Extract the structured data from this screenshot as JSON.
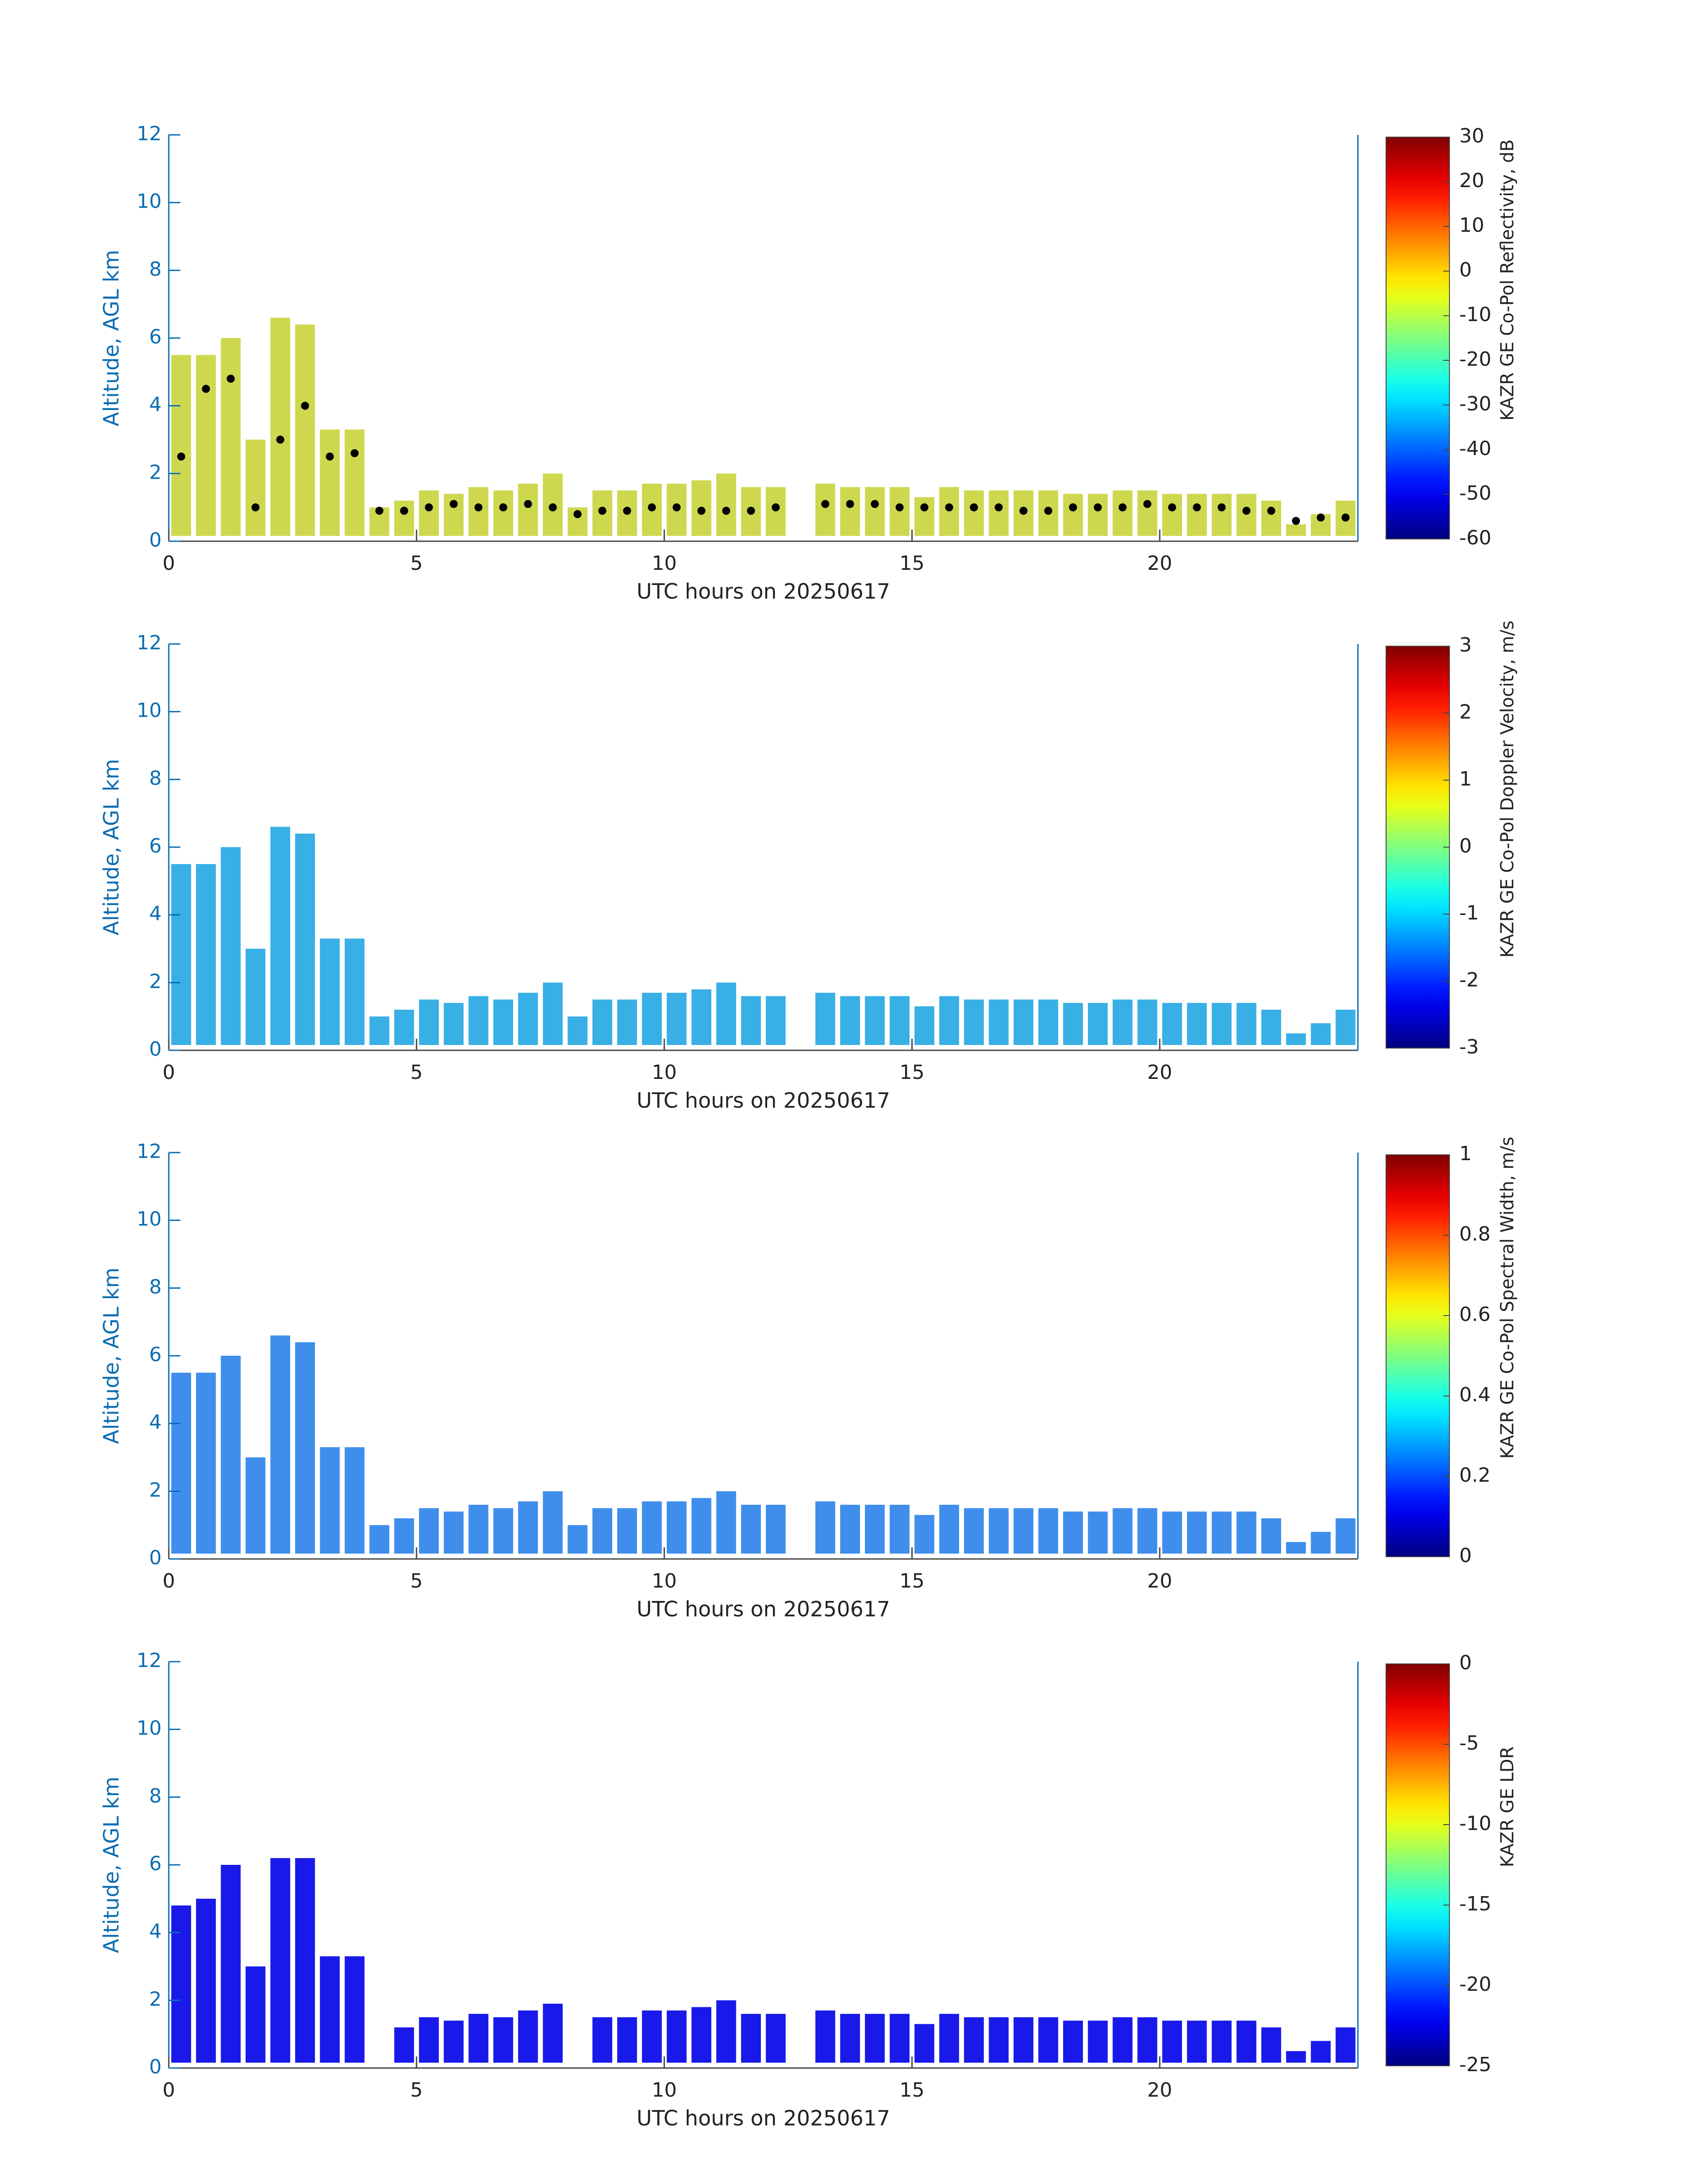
{
  "chart_data": [
    {
      "type": "heatmap",
      "xlabel": "UTC hours on 20250617",
      "ylabel": "Altitude, AGL km",
      "xlim": [
        0,
        24
      ],
      "xticks": [
        0,
        5,
        10,
        15,
        20
      ],
      "ylim": [
        0,
        12
      ],
      "yticks": [
        0,
        2,
        4,
        6,
        8,
        10,
        12
      ],
      "colormap": "jet",
      "clim": [
        -60,
        30
      ],
      "cticks": [
        -60,
        -50,
        -40,
        -30,
        -20,
        -10,
        0,
        10,
        20,
        30
      ],
      "colorbar_label": "KAZR GE Co-Pol Reflectivity, dB",
      "color": "#c9d43c",
      "x": [
        0.25,
        0.75,
        1.25,
        1.75,
        2.25,
        2.75,
        3.25,
        3.75,
        4.25,
        4.75,
        5.25,
        5.75,
        6.25,
        6.75,
        7.25,
        7.75,
        8.25,
        8.75,
        9.25,
        9.75,
        10.25,
        10.75,
        11.25,
        11.75,
        12.25,
        12.75,
        13.25,
        13.75,
        14.25,
        14.75,
        15.25,
        15.75,
        16.25,
        16.75,
        17.25,
        17.75,
        18.25,
        18.75,
        19.25,
        19.75,
        20.25,
        20.75,
        21.25,
        21.75,
        22.25,
        22.75,
        23.25,
        23.75
      ],
      "values": [
        5.5,
        5.5,
        6.0,
        3.0,
        6.6,
        6.4,
        3.3,
        3.3,
        1.0,
        1.2,
        1.5,
        1.4,
        1.6,
        1.5,
        1.7,
        2.0,
        1.0,
        1.5,
        1.5,
        1.7,
        1.7,
        1.8,
        2.0,
        1.6,
        1.6,
        null,
        1.7,
        1.6,
        1.6,
        1.6,
        1.3,
        1.6,
        1.5,
        1.5,
        1.5,
        1.5,
        1.4,
        1.4,
        1.5,
        1.5,
        1.4,
        1.4,
        1.4,
        1.4,
        1.2,
        0.5,
        0.8,
        1.2
      ],
      "points": {
        "color": "#000000",
        "values": [
          2.5,
          4.5,
          4.8,
          1.0,
          3.0,
          4.0,
          2.5,
          2.6,
          0.9,
          0.9,
          1.0,
          1.1,
          1.0,
          1.0,
          1.1,
          1.0,
          0.8,
          0.9,
          0.9,
          1.0,
          1.0,
          0.9,
          0.9,
          0.9,
          1.0,
          null,
          1.1,
          1.1,
          1.1,
          1.0,
          1.0,
          1.0,
          1.0,
          1.0,
          0.9,
          0.9,
          1.0,
          1.0,
          1.0,
          1.1,
          1.0,
          1.0,
          1.0,
          0.9,
          0.9,
          0.6,
          0.7,
          0.7
        ]
      }
    },
    {
      "type": "heatmap",
      "xlabel": "UTC hours on 20250617",
      "ylabel": "Altitude, AGL km",
      "xlim": [
        0,
        24
      ],
      "xticks": [
        0,
        5,
        10,
        15,
        20
      ],
      "ylim": [
        0,
        12
      ],
      "yticks": [
        0,
        2,
        4,
        6,
        8,
        10,
        12
      ],
      "colormap": "jet",
      "clim": [
        -3,
        3
      ],
      "cticks": [
        -3,
        -2,
        -1,
        0,
        1,
        2,
        3
      ],
      "colorbar_label": "KAZR GE Co-Pol Doppler Velocity, m/s",
      "color": "#22a6e2",
      "x": [
        0.25,
        0.75,
        1.25,
        1.75,
        2.25,
        2.75,
        3.25,
        3.75,
        4.25,
        4.75,
        5.25,
        5.75,
        6.25,
        6.75,
        7.25,
        7.75,
        8.25,
        8.75,
        9.25,
        9.75,
        10.25,
        10.75,
        11.25,
        11.75,
        12.25,
        12.75,
        13.25,
        13.75,
        14.25,
        14.75,
        15.25,
        15.75,
        16.25,
        16.75,
        17.25,
        17.75,
        18.25,
        18.75,
        19.25,
        19.75,
        20.25,
        20.75,
        21.25,
        21.75,
        22.25,
        22.75,
        23.25,
        23.75
      ],
      "values": [
        5.5,
        5.5,
        6.0,
        3.0,
        6.6,
        6.4,
        3.3,
        3.3,
        1.0,
        1.2,
        1.5,
        1.4,
        1.6,
        1.5,
        1.7,
        2.0,
        1.0,
        1.5,
        1.5,
        1.7,
        1.7,
        1.8,
        2.0,
        1.6,
        1.6,
        null,
        1.7,
        1.6,
        1.6,
        1.6,
        1.3,
        1.6,
        1.5,
        1.5,
        1.5,
        1.5,
        1.4,
        1.4,
        1.5,
        1.5,
        1.4,
        1.4,
        1.4,
        1.4,
        1.2,
        0.5,
        0.8,
        1.2
      ]
    },
    {
      "type": "heatmap",
      "xlabel": "UTC hours on 20250617",
      "ylabel": "Altitude, AGL km",
      "xlim": [
        0,
        24
      ],
      "xticks": [
        0,
        5,
        10,
        15,
        20
      ],
      "ylim": [
        0,
        12
      ],
      "yticks": [
        0,
        2,
        4,
        6,
        8,
        10,
        12
      ],
      "colormap": "jet",
      "clim": [
        0,
        1
      ],
      "cticks": [
        0,
        0.2,
        0.4,
        0.6,
        0.8,
        1
      ],
      "colorbar_label": "KAZR GE Co-Pol Spectral Width, m/s",
      "color": "#2a82ea",
      "x": [
        0.25,
        0.75,
        1.25,
        1.75,
        2.25,
        2.75,
        3.25,
        3.75,
        4.25,
        4.75,
        5.25,
        5.75,
        6.25,
        6.75,
        7.25,
        7.75,
        8.25,
        8.75,
        9.25,
        9.75,
        10.25,
        10.75,
        11.25,
        11.75,
        12.25,
        12.75,
        13.25,
        13.75,
        14.25,
        14.75,
        15.25,
        15.75,
        16.25,
        16.75,
        17.25,
        17.75,
        18.25,
        18.75,
        19.25,
        19.75,
        20.25,
        20.75,
        21.25,
        21.75,
        22.25,
        22.75,
        23.25,
        23.75
      ],
      "values": [
        5.5,
        5.5,
        6.0,
        3.0,
        6.6,
        6.4,
        3.3,
        3.3,
        1.0,
        1.2,
        1.5,
        1.4,
        1.6,
        1.5,
        1.7,
        2.0,
        1.0,
        1.5,
        1.5,
        1.7,
        1.7,
        1.8,
        2.0,
        1.6,
        1.6,
        null,
        1.7,
        1.6,
        1.6,
        1.6,
        1.3,
        1.6,
        1.5,
        1.5,
        1.5,
        1.5,
        1.4,
        1.4,
        1.5,
        1.5,
        1.4,
        1.4,
        1.4,
        1.4,
        1.2,
        0.5,
        0.8,
        1.2
      ]
    },
    {
      "type": "heatmap",
      "xlabel": "UTC hours on 20250617",
      "ylabel": "Altitude, AGL km",
      "xlim": [
        0,
        24
      ],
      "xticks": [
        0,
        5,
        10,
        15,
        20
      ],
      "ylim": [
        0,
        12
      ],
      "yticks": [
        0,
        2,
        4,
        6,
        8,
        10,
        12
      ],
      "colormap": "jet",
      "clim": [
        -25,
        0
      ],
      "cticks": [
        -25,
        -20,
        -15,
        -10,
        -5,
        0
      ],
      "colorbar_label": "KAZR GE LDR",
      "color": "#0000e8",
      "x": [
        0.25,
        0.75,
        1.25,
        1.75,
        2.25,
        2.75,
        3.25,
        3.75,
        4.25,
        4.75,
        5.25,
        5.75,
        6.25,
        6.75,
        7.25,
        7.75,
        8.25,
        8.75,
        9.25,
        9.75,
        10.25,
        10.75,
        11.25,
        11.75,
        12.25,
        12.75,
        13.25,
        13.75,
        14.25,
        14.75,
        15.25,
        15.75,
        16.25,
        16.75,
        17.25,
        17.75,
        18.25,
        18.75,
        19.25,
        19.75,
        20.25,
        20.75,
        21.25,
        21.75,
        22.25,
        22.75,
        23.25,
        23.75
      ],
      "values": [
        4.8,
        5.0,
        6.0,
        3.0,
        6.2,
        6.2,
        3.3,
        3.3,
        null,
        1.2,
        1.5,
        1.4,
        1.6,
        1.5,
        1.7,
        1.9,
        null,
        1.5,
        1.5,
        1.7,
        1.7,
        1.8,
        2.0,
        1.6,
        1.6,
        null,
        1.7,
        1.6,
        1.6,
        1.6,
        1.3,
        1.6,
        1.5,
        1.5,
        1.5,
        1.5,
        1.4,
        1.4,
        1.5,
        1.5,
        1.4,
        1.4,
        1.4,
        1.4,
        1.2,
        0.5,
        0.8,
        1.2
      ]
    }
  ]
}
